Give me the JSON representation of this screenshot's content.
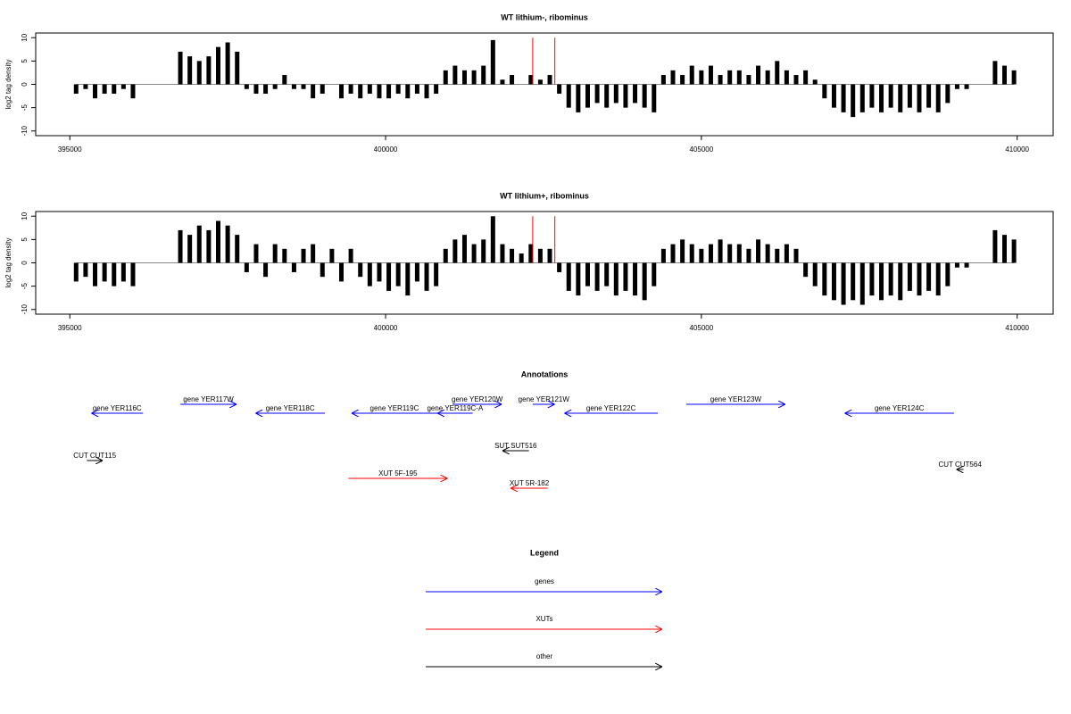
{
  "chart_data": [
    {
      "type": "bar",
      "title": "WT lithium-, ribominus",
      "ylabel": "log2 tag density",
      "color": "#000000",
      "x": [
        395100,
        395250,
        395400,
        395550,
        395700,
        395850,
        396000,
        396150,
        396300,
        396450,
        396600,
        396750,
        396900,
        397050,
        397200,
        397350,
        397500,
        397650,
        397800,
        397950,
        398100,
        398250,
        398400,
        398550,
        398700,
        398850,
        399000,
        399150,
        399300,
        399450,
        399600,
        399750,
        399900,
        400050,
        400200,
        400350,
        400500,
        400650,
        400800,
        400950,
        401100,
        401250,
        401400,
        401550,
        401700,
        401850,
        402000,
        402150,
        402300,
        402450,
        402600,
        402750,
        402900,
        403050,
        403200,
        403350,
        403500,
        403650,
        403800,
        403950,
        404100,
        404250,
        404400,
        404550,
        404700,
        404850,
        405000,
        405150,
        405300,
        405450,
        405600,
        405750,
        405900,
        406050,
        406200,
        406350,
        406500,
        406650,
        406800,
        406950,
        407100,
        407250,
        407400,
        407550,
        407700,
        407850,
        408000,
        408150,
        408300,
        408450,
        408600,
        408750,
        408900,
        409050,
        409200,
        409350,
        409500,
        409650,
        409800,
        409950
      ],
      "values": [
        -2,
        -1,
        -3,
        -2,
        -2,
        -1,
        -3,
        null,
        null,
        null,
        null,
        7,
        6,
        5,
        6,
        8,
        9,
        7,
        -1,
        -2,
        -2,
        -1,
        2,
        -1,
        -1,
        -3,
        -2,
        null,
        -3,
        -2,
        -3,
        -2,
        -3,
        -3,
        -2,
        -3,
        -2,
        -3,
        -2,
        3,
        4,
        3,
        3,
        4,
        9.5,
        1,
        2,
        null,
        2,
        1,
        2,
        -2,
        -5,
        -6,
        -5,
        -4,
        -5,
        -4,
        -5,
        -4,
        -5,
        -6,
        2,
        3,
        2,
        4,
        3,
        4,
        2,
        3,
        3,
        2,
        4,
        3,
        5,
        3,
        2,
        3,
        1,
        -3,
        -5,
        -6,
        -7,
        -6,
        -5,
        -6,
        -5,
        -6,
        -5,
        -6,
        -5,
        -6,
        -4,
        -1,
        -1,
        null,
        null,
        5,
        4,
        3
      ],
      "markers": {
        "x": [
          402330,
          402680
        ],
        "values": [
          10,
          10
        ],
        "color": "#ff0000"
      },
      "xlim": [
        394460,
        410570
      ],
      "xticks": [
        395000,
        400000,
        405000,
        410000
      ],
      "ylim": [
        -11,
        11
      ],
      "yticks": [
        -10,
        -5,
        0,
        5,
        10
      ]
    },
    {
      "type": "bar",
      "title": "WT lithium+, ribominus",
      "ylabel": "log2 tag density",
      "color": "#000000",
      "x": [
        395100,
        395250,
        395400,
        395550,
        395700,
        395850,
        396000,
        396150,
        396300,
        396450,
        396600,
        396750,
        396900,
        397050,
        397200,
        397350,
        397500,
        397650,
        397800,
        397950,
        398100,
        398250,
        398400,
        398550,
        398700,
        398850,
        399000,
        399150,
        399300,
        399450,
        399600,
        399750,
        399900,
        400050,
        400200,
        400350,
        400500,
        400650,
        400800,
        400950,
        401100,
        401250,
        401400,
        401550,
        401700,
        401850,
        402000,
        402150,
        402300,
        402450,
        402600,
        402750,
        402900,
        403050,
        403200,
        403350,
        403500,
        403650,
        403800,
        403950,
        404100,
        404250,
        404400,
        404550,
        404700,
        404850,
        405000,
        405150,
        405300,
        405450,
        405600,
        405750,
        405900,
        406050,
        406200,
        406350,
        406500,
        406650,
        406800,
        406950,
        407100,
        407250,
        407400,
        407550,
        407700,
        407850,
        408000,
        408150,
        408300,
        408450,
        408600,
        408750,
        408900,
        409050,
        409200,
        409350,
        409500,
        409650,
        409800,
        409950
      ],
      "values": [
        -4,
        -3,
        -5,
        -4,
        -5,
        -4,
        -5,
        null,
        null,
        null,
        null,
        7,
        6,
        8,
        7,
        9,
        8,
        6,
        -2,
        4,
        -3,
        4,
        3,
        -2,
        3,
        4,
        -3,
        3,
        -4,
        3,
        -3,
        -5,
        -4,
        -6,
        -5,
        -7,
        -4,
        -6,
        -5,
        3,
        5,
        6,
        4,
        5,
        10,
        4,
        3,
        2,
        4,
        3,
        3,
        -2,
        -6,
        -7,
        -5,
        -6,
        -5,
        -7,
        -6,
        -7,
        -8,
        -5,
        3,
        4,
        5,
        4,
        3,
        4,
        5,
        4,
        4,
        3,
        5,
        4,
        3,
        4,
        3,
        -3,
        -5,
        -7,
        -8,
        -9,
        -8,
        -9,
        -7,
        -8,
        -7,
        -8,
        -6,
        -7,
        -6,
        -7,
        -5,
        -1,
        -1,
        null,
        null,
        7,
        6,
        5
      ],
      "markers": {
        "x": [
          402330,
          402680
        ],
        "values": [
          10,
          10
        ],
        "color": "#ff0000"
      },
      "xlim": [
        394460,
        410570
      ],
      "xticks": [
        395000,
        400000,
        405000,
        410000
      ],
      "ylim": [
        -11,
        11
      ],
      "yticks": [
        -10,
        -5,
        0,
        5,
        10
      ]
    },
    {
      "type": "annotation",
      "title": "Annotations",
      "xlim": [
        394460,
        410570
      ],
      "features": [
        {
          "label": "gene YER116C",
          "start": 395340,
          "end": 396160,
          "strand": "-",
          "color": "#0000ff"
        },
        {
          "label": "gene YER117W",
          "start": 396750,
          "end": 397640,
          "strand": "+",
          "color": "#0000ff"
        },
        {
          "label": "gene YER118C",
          "start": 397940,
          "end": 399040,
          "strand": "-",
          "color": "#0000ff"
        },
        {
          "label": "gene YER119C",
          "start": 399460,
          "end": 400820,
          "strand": "-",
          "color": "#0000ff"
        },
        {
          "label": "gene YER119C-A",
          "start": 400820,
          "end": 401380,
          "strand": "-",
          "color": "#0000ff"
        },
        {
          "label": "gene YER120W",
          "start": 401060,
          "end": 401840,
          "strand": "+",
          "color": "#0000ff"
        },
        {
          "label": "gene YER121W",
          "start": 402330,
          "end": 402680,
          "strand": "+",
          "color": "#0000ff"
        },
        {
          "label": "gene YER122C",
          "start": 402830,
          "end": 404310,
          "strand": "-",
          "color": "#0000ff"
        },
        {
          "label": "gene YER123W",
          "start": 404760,
          "end": 406330,
          "strand": "+",
          "color": "#0000ff"
        },
        {
          "label": "gene YER124C",
          "start": 407270,
          "end": 409000,
          "strand": "-",
          "color": "#0000ff"
        },
        {
          "label": "CUT CUT115",
          "start": 395270,
          "end": 395520,
          "strand": "+",
          "color": "#000000"
        },
        {
          "label": "SUT SUT516",
          "start": 401850,
          "end": 402270,
          "strand": "-",
          "color": "#000000"
        },
        {
          "label": "XUT 5F-195",
          "start": 399410,
          "end": 400980,
          "strand": "+",
          "color": "#ff0000"
        },
        {
          "label": "XUT 5R-182",
          "start": 401980,
          "end": 402570,
          "strand": "-",
          "color": "#ff0000"
        },
        {
          "label": "CUT CUT564",
          "start": 409040,
          "end": 409150,
          "strand": "-",
          "color": "#000000"
        }
      ]
    },
    {
      "type": "legend",
      "title": "Legend",
      "items": [
        {
          "name": "genes",
          "color": "#0000ff"
        },
        {
          "name": "XUTs",
          "color": "#ff0000"
        },
        {
          "name": "other",
          "color": "#000000"
        }
      ]
    }
  ]
}
